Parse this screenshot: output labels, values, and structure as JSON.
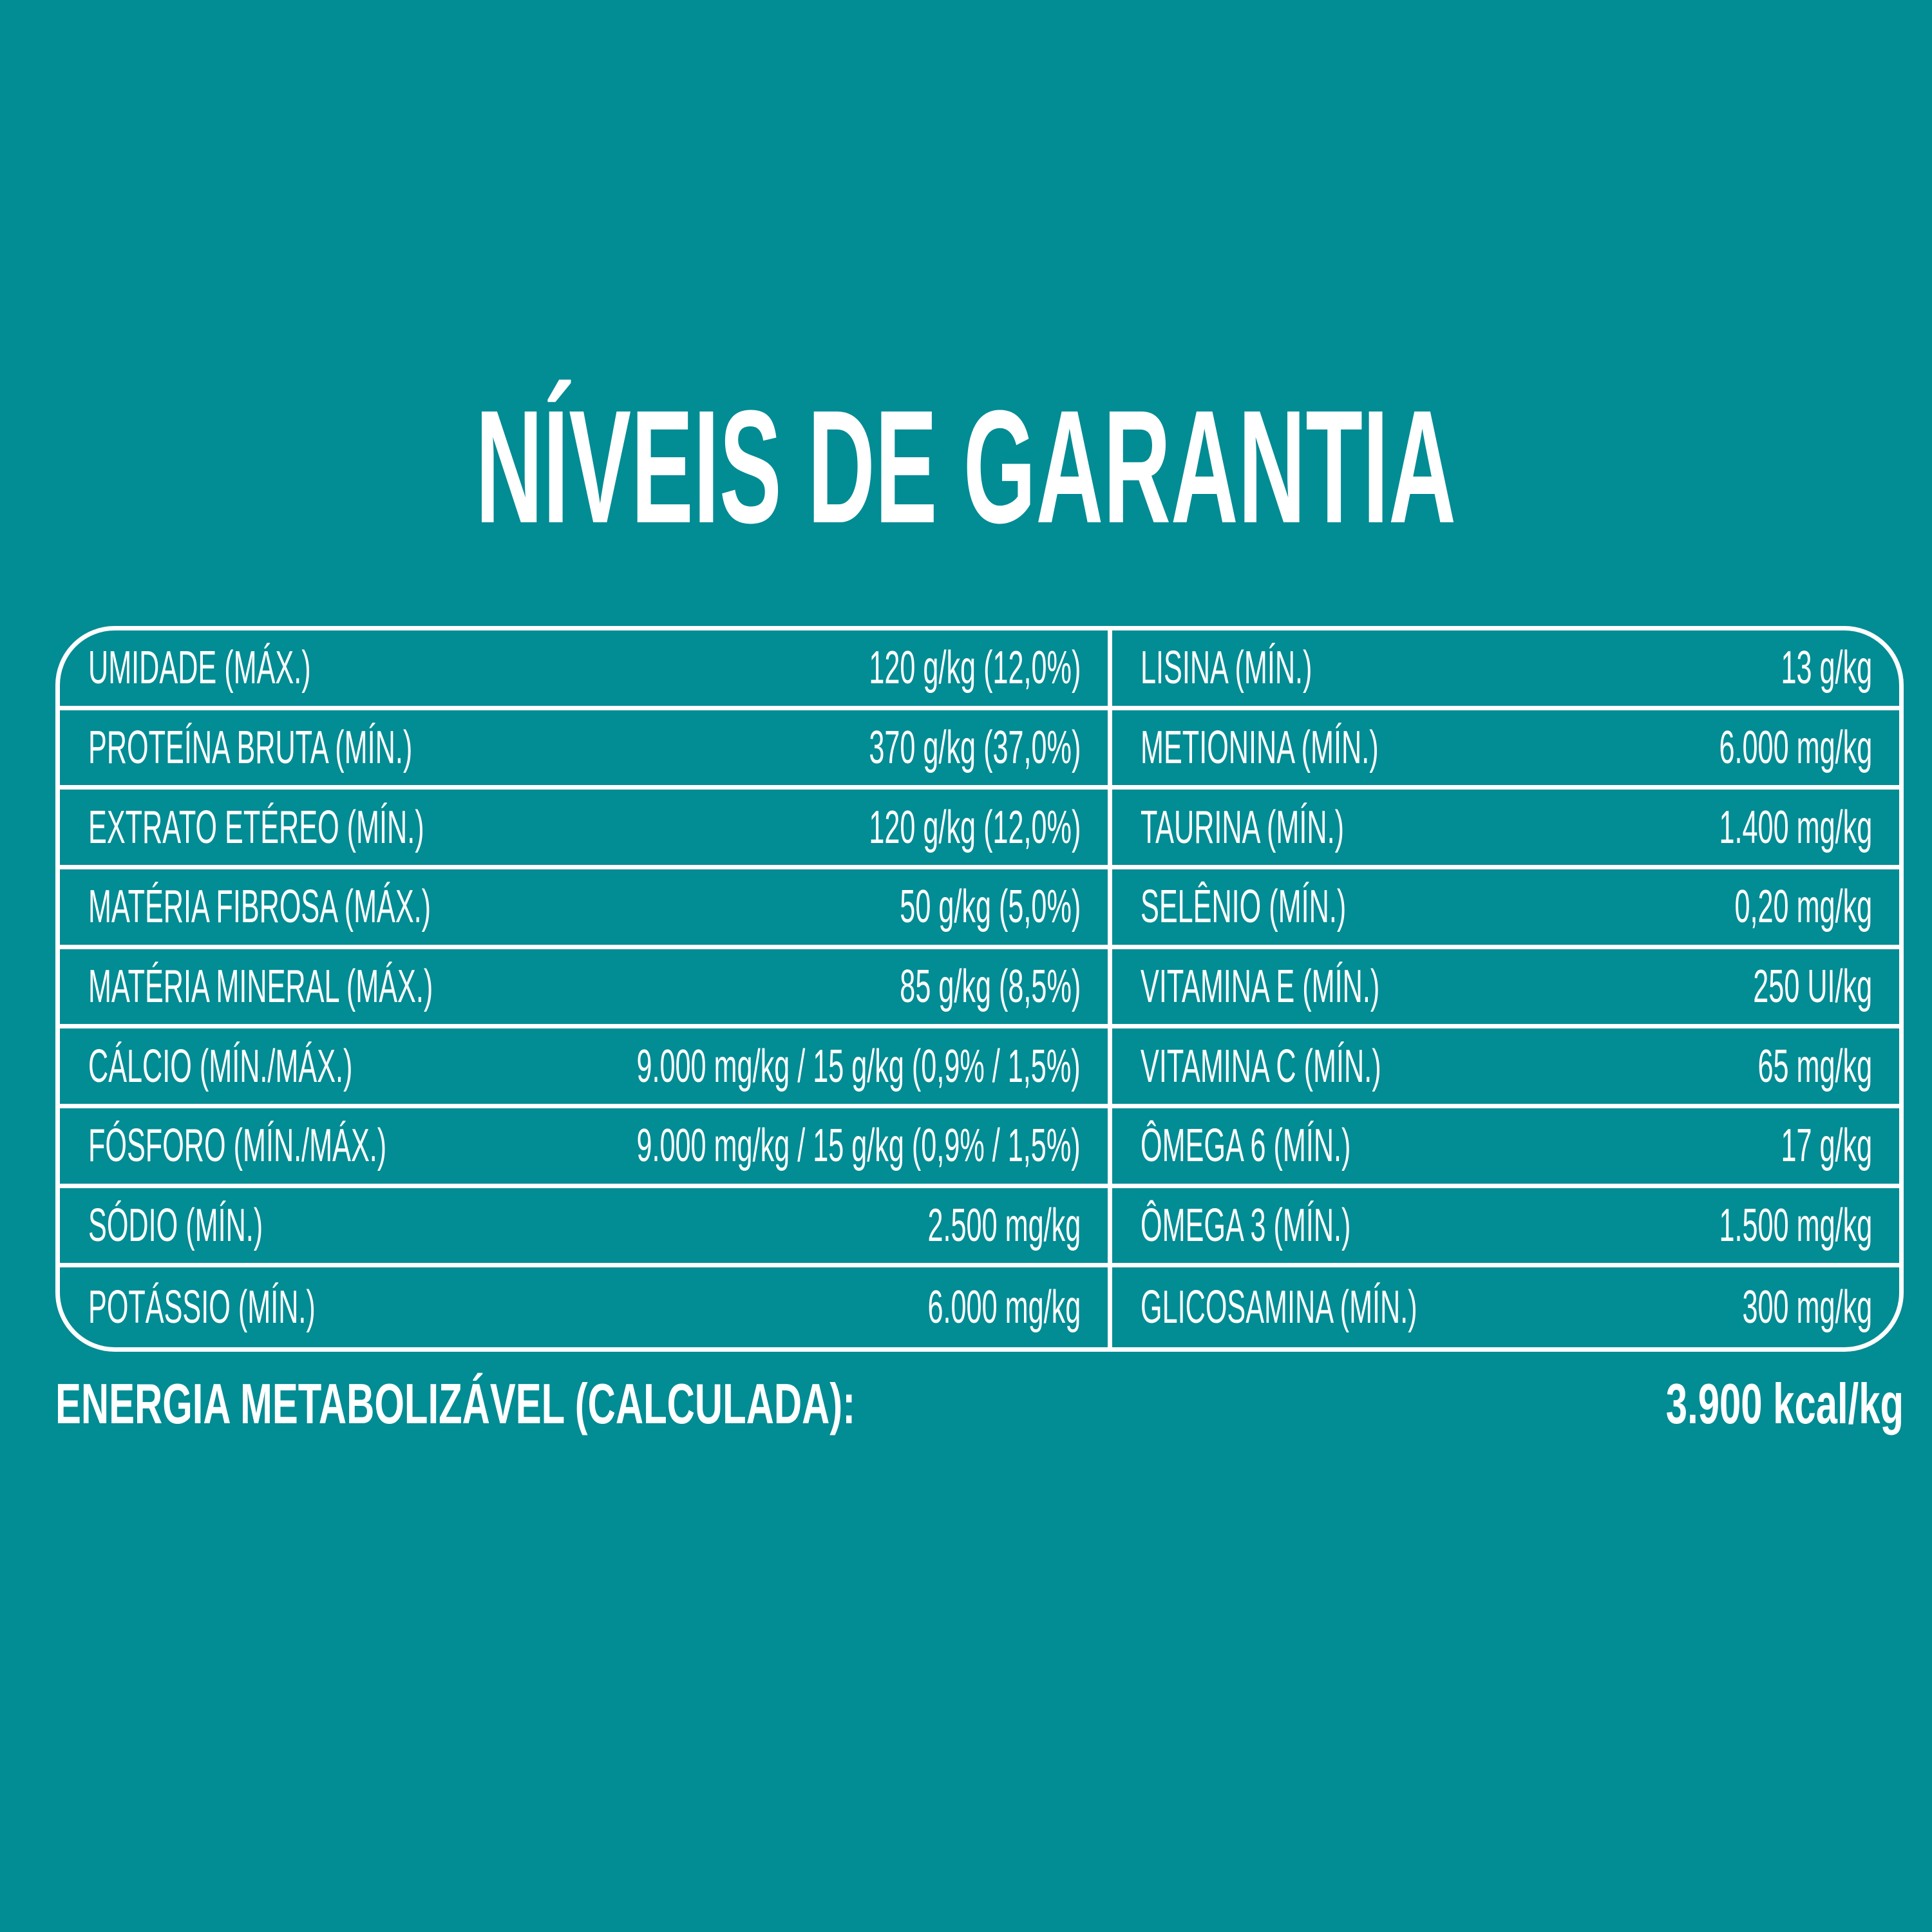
{
  "title": "NÍVEIS DE GARANTIA",
  "colors": {
    "background": "#028c94",
    "text": "#ffffff"
  },
  "table": {
    "left": [
      {
        "label": "UMIDADE (MÁX.)",
        "value": "120 g/kg (12,0%)"
      },
      {
        "label": "PROTEÍNA BRUTA (MÍN.)",
        "value": "370 g/kg (37,0%)"
      },
      {
        "label": "EXTRATO ETÉREO (MÍN.)",
        "value": "120 g/kg (12,0%)"
      },
      {
        "label": "MATÉRIA FIBROSA (MÁX.)",
        "value": "50 g/kg (5,0%)"
      },
      {
        "label": "MATÉRIA MINERAL (MÁX.)",
        "value": "85 g/kg (8,5%)"
      },
      {
        "label": "CÁLCIO (MÍN./MÁX.)",
        "value": "9.000 mg/kg / 15 g/kg (0,9% / 1,5%)"
      },
      {
        "label": "FÓSFORO (MÍN./MÁX.)",
        "value": "9.000 mg/kg / 15 g/kg (0,9% / 1,5%)"
      },
      {
        "label": "SÓDIO (MÍN.)",
        "value": "2.500 mg/kg"
      },
      {
        "label": "POTÁSSIO (MÍN.)",
        "value": "6.000 mg/kg"
      }
    ],
    "right": [
      {
        "label": "LISINA (MÍN.)",
        "value": "13 g/kg"
      },
      {
        "label": "METIONINA (MÍN.)",
        "value": "6.000 mg/kg"
      },
      {
        "label": "TAURINA (MÍN.)",
        "value": "1.400 mg/kg"
      },
      {
        "label": "SELÊNIO (MÍN.)",
        "value": "0,20 mg/kg"
      },
      {
        "label": "VITAMINA E (MÍN.)",
        "value": "250 UI/kg"
      },
      {
        "label": "VITAMINA C (MÍN.)",
        "value": "65 mg/kg"
      },
      {
        "label": "ÔMEGA 6 (MÍN.)",
        "value": "17 g/kg"
      },
      {
        "label": "ÔMEGA 3 (MÍN.)",
        "value": "1.500 mg/kg"
      },
      {
        "label": "GLICOSAMINA (MÍN.)",
        "value": "300 mg/kg"
      }
    ]
  },
  "energy": {
    "label": "ENERGIA METABOLIZÁVEL (CALCULADA):",
    "value": "3.900 kcal/kg"
  }
}
